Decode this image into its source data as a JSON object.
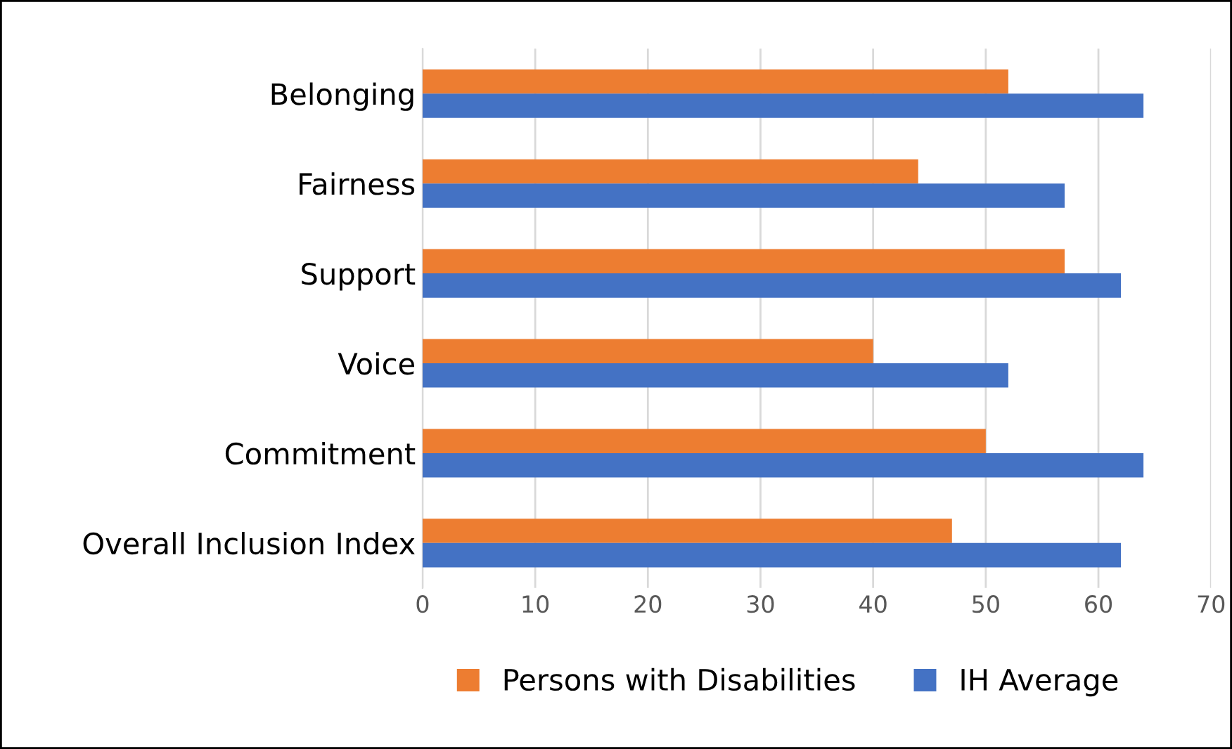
{
  "chart_data": {
    "type": "bar",
    "orientation": "horizontal",
    "categories": [
      "Belonging",
      "Fairness",
      "Support",
      "Voice",
      "Commitment",
      "Overall Inclusion Index"
    ],
    "series": [
      {
        "name": "Persons with Disabilities",
        "color": "#ed7d31",
        "values": [
          52,
          44,
          57,
          40,
          50,
          47
        ]
      },
      {
        "name": "IH Average",
        "color": "#4472c4",
        "values": [
          64,
          57,
          62,
          52,
          64,
          62
        ]
      }
    ],
    "xlim": [
      0,
      70
    ],
    "xticks": [
      0,
      10,
      20,
      30,
      40,
      50,
      60,
      70
    ],
    "grid": "x",
    "legend": "bottom"
  }
}
